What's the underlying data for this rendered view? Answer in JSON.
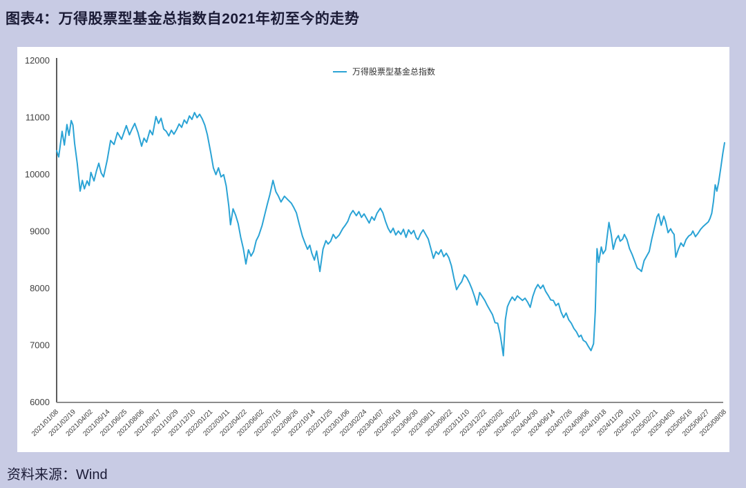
{
  "page": {
    "title": "图表4：万得股票型基金总指数自2021年初至今的走势",
    "source_label": "资料来源：Wind"
  },
  "colors": {
    "background": "#c8cbe4",
    "card": "#ffffff",
    "line": "#2aa3d5",
    "title_text": "#1b1b36",
    "y_axis": "#4a4a4a",
    "x_axis": "#8c8c8c",
    "tick_text": "#3c3c3c"
  },
  "chart_data": {
    "type": "line",
    "title": "",
    "legend_entries": [
      "万得股票型基金总指数"
    ],
    "legend_position": "top-center",
    "grid": false,
    "ylim": [
      6000,
      12000
    ],
    "yticks": [
      12000,
      11000,
      10000,
      9000,
      8000,
      7000,
      6000
    ],
    "x_unit": "tick_index",
    "x_tick_labels": [
      "2021/01/08",
      "2021/02/19",
      "2021/04/02",
      "2021/05/14",
      "2021/06/25",
      "2021/08/06",
      "2021/09/17",
      "2021/10/29",
      "2021/12/10",
      "2022/01/21",
      "2022/03/11",
      "2022/04/22",
      "2022/06/02",
      "2022/07/15",
      "2022/08/26",
      "2022/10/14",
      "2022/11/25",
      "2023/01/06",
      "2023/02/24",
      "2023/04/07",
      "2023/05/19",
      "2023/06/30",
      "2023/08/11",
      "2023/09/22",
      "2023/11/10",
      "2023/12/22",
      "2024/02/02",
      "2024/03/22",
      "2024/04/30",
      "2024/06/14",
      "2024/07/26",
      "2024/09/06",
      "2024/10/18",
      "2024/11/29",
      "2025/01/10",
      "2025/02/21",
      "2025/04/03",
      "2025/05/16",
      "2025/06/27",
      "2025/08/08"
    ],
    "series": [
      {
        "name": "万得股票型基金总指数",
        "color": "#2aa3d5",
        "points": [
          [
            0,
            10420
          ],
          [
            0.12,
            10310
          ],
          [
            0.32,
            10760
          ],
          [
            0.45,
            10520
          ],
          [
            0.6,
            10880
          ],
          [
            0.72,
            10690
          ],
          [
            0.85,
            10950
          ],
          [
            0.95,
            10870
          ],
          [
            1.05,
            10550
          ],
          [
            1.2,
            10200
          ],
          [
            1.37,
            9710
          ],
          [
            1.5,
            9900
          ],
          [
            1.62,
            9750
          ],
          [
            1.78,
            9890
          ],
          [
            1.9,
            9810
          ],
          [
            2,
            10040
          ],
          [
            2.18,
            9890
          ],
          [
            2.32,
            10060
          ],
          [
            2.46,
            10200
          ],
          [
            2.6,
            10030
          ],
          [
            2.74,
            9960
          ],
          [
            2.95,
            10250
          ],
          [
            3.15,
            10600
          ],
          [
            3.35,
            10530
          ],
          [
            3.55,
            10740
          ],
          [
            3.79,
            10620
          ],
          [
            4.07,
            10860
          ],
          [
            4.25,
            10700
          ],
          [
            4.4,
            10800
          ],
          [
            4.56,
            10900
          ],
          [
            4.75,
            10740
          ],
          [
            4.96,
            10500
          ],
          [
            5.1,
            10640
          ],
          [
            5.25,
            10570
          ],
          [
            5.45,
            10780
          ],
          [
            5.6,
            10700
          ],
          [
            5.8,
            11020
          ],
          [
            5.95,
            10900
          ],
          [
            6.1,
            10990
          ],
          [
            6.25,
            10800
          ],
          [
            6.4,
            10760
          ],
          [
            6.55,
            10680
          ],
          [
            6.7,
            10780
          ],
          [
            6.85,
            10710
          ],
          [
            7,
            10790
          ],
          [
            7.15,
            10890
          ],
          [
            7.3,
            10830
          ],
          [
            7.45,
            10960
          ],
          [
            7.6,
            10900
          ],
          [
            7.75,
            11030
          ],
          [
            7.9,
            10970
          ],
          [
            8.05,
            11090
          ],
          [
            8.2,
            11000
          ],
          [
            8.35,
            11060
          ],
          [
            8.5,
            10980
          ],
          [
            8.65,
            10870
          ],
          [
            8.8,
            10700
          ],
          [
            9,
            10380
          ],
          [
            9.15,
            10120
          ],
          [
            9.3,
            10000
          ],
          [
            9.45,
            10120
          ],
          [
            9.6,
            9960
          ],
          [
            9.75,
            10000
          ],
          [
            9.9,
            9800
          ],
          [
            10.05,
            9450
          ],
          [
            10.15,
            9120
          ],
          [
            10.3,
            9400
          ],
          [
            10.45,
            9290
          ],
          [
            10.6,
            9140
          ],
          [
            10.75,
            8900
          ],
          [
            10.9,
            8700
          ],
          [
            11.05,
            8430
          ],
          [
            11.2,
            8680
          ],
          [
            11.35,
            8570
          ],
          [
            11.5,
            8650
          ],
          [
            11.65,
            8840
          ],
          [
            11.8,
            8930
          ],
          [
            12,
            9110
          ],
          [
            12.15,
            9300
          ],
          [
            12.3,
            9480
          ],
          [
            12.45,
            9650
          ],
          [
            12.63,
            9900
          ],
          [
            12.8,
            9700
          ],
          [
            12.95,
            9620
          ],
          [
            13.1,
            9520
          ],
          [
            13.3,
            9620
          ],
          [
            13.5,
            9560
          ],
          [
            13.7,
            9500
          ],
          [
            13.85,
            9420
          ],
          [
            14,
            9330
          ],
          [
            14.15,
            9150
          ],
          [
            14.35,
            8920
          ],
          [
            14.5,
            8800
          ],
          [
            14.65,
            8690
          ],
          [
            14.78,
            8760
          ],
          [
            14.9,
            8620
          ],
          [
            15.05,
            8500
          ],
          [
            15.18,
            8660
          ],
          [
            15.37,
            8300
          ],
          [
            15.55,
            8690
          ],
          [
            15.72,
            8840
          ],
          [
            15.85,
            8780
          ],
          [
            16,
            8830
          ],
          [
            16.15,
            8950
          ],
          [
            16.3,
            8880
          ],
          [
            16.5,
            8940
          ],
          [
            16.7,
            9050
          ],
          [
            16.85,
            9110
          ],
          [
            17,
            9180
          ],
          [
            17.15,
            9300
          ],
          [
            17.3,
            9370
          ],
          [
            17.5,
            9280
          ],
          [
            17.65,
            9350
          ],
          [
            17.8,
            9250
          ],
          [
            17.95,
            9310
          ],
          [
            18.1,
            9230
          ],
          [
            18.25,
            9150
          ],
          [
            18.4,
            9260
          ],
          [
            18.55,
            9200
          ],
          [
            18.7,
            9320
          ],
          [
            18.9,
            9410
          ],
          [
            19.05,
            9330
          ],
          [
            19.2,
            9180
          ],
          [
            19.35,
            9060
          ],
          [
            19.5,
            8980
          ],
          [
            19.65,
            9060
          ],
          [
            19.8,
            8940
          ],
          [
            19.95,
            9010
          ],
          [
            20.1,
            8950
          ],
          [
            20.25,
            9040
          ],
          [
            20.4,
            8900
          ],
          [
            20.55,
            9030
          ],
          [
            20.7,
            8960
          ],
          [
            20.85,
            9020
          ],
          [
            21,
            8890
          ],
          [
            21.1,
            8860
          ],
          [
            21.25,
            8960
          ],
          [
            21.4,
            9030
          ],
          [
            21.55,
            8950
          ],
          [
            21.7,
            8870
          ],
          [
            21.85,
            8700
          ],
          [
            22,
            8530
          ],
          [
            22.15,
            8650
          ],
          [
            22.3,
            8600
          ],
          [
            22.45,
            8680
          ],
          [
            22.6,
            8560
          ],
          [
            22.75,
            8620
          ],
          [
            22.9,
            8540
          ],
          [
            23.05,
            8400
          ],
          [
            23.2,
            8180
          ],
          [
            23.35,
            7980
          ],
          [
            23.5,
            8060
          ],
          [
            23.65,
            8120
          ],
          [
            23.8,
            8240
          ],
          [
            23.95,
            8190
          ],
          [
            24.1,
            8100
          ],
          [
            24.25,
            7990
          ],
          [
            24.4,
            7860
          ],
          [
            24.55,
            7710
          ],
          [
            24.7,
            7930
          ],
          [
            24.85,
            7860
          ],
          [
            25,
            7790
          ],
          [
            25.15,
            7700
          ],
          [
            25.3,
            7620
          ],
          [
            25.45,
            7540
          ],
          [
            25.6,
            7400
          ],
          [
            25.75,
            7390
          ],
          [
            25.9,
            7190
          ],
          [
            26,
            6990
          ],
          [
            26.08,
            6820
          ],
          [
            26.2,
            7450
          ],
          [
            26.32,
            7680
          ],
          [
            26.45,
            7770
          ],
          [
            26.6,
            7850
          ],
          [
            26.75,
            7790
          ],
          [
            26.9,
            7870
          ],
          [
            27.05,
            7830
          ],
          [
            27.2,
            7790
          ],
          [
            27.35,
            7830
          ],
          [
            27.5,
            7760
          ],
          [
            27.65,
            7670
          ],
          [
            27.8,
            7860
          ],
          [
            27.95,
            7990
          ],
          [
            28.1,
            8070
          ],
          [
            28.25,
            8000
          ],
          [
            28.4,
            8060
          ],
          [
            28.55,
            7950
          ],
          [
            28.7,
            7880
          ],
          [
            28.85,
            7800
          ],
          [
            29,
            7790
          ],
          [
            29.15,
            7700
          ],
          [
            29.3,
            7740
          ],
          [
            29.45,
            7590
          ],
          [
            29.6,
            7490
          ],
          [
            29.75,
            7570
          ],
          [
            29.9,
            7450
          ],
          [
            30.05,
            7390
          ],
          [
            30.2,
            7300
          ],
          [
            30.35,
            7240
          ],
          [
            30.5,
            7150
          ],
          [
            30.62,
            7180
          ],
          [
            30.75,
            7090
          ],
          [
            30.9,
            7060
          ],
          [
            31.05,
            6980
          ],
          [
            31.2,
            6910
          ],
          [
            31.35,
            7030
          ],
          [
            31.45,
            7600
          ],
          [
            31.55,
            8700
          ],
          [
            31.65,
            8460
          ],
          [
            31.8,
            8730
          ],
          [
            31.9,
            8610
          ],
          [
            32.05,
            8680
          ],
          [
            32.15,
            8930
          ],
          [
            32.25,
            9160
          ],
          [
            32.38,
            8950
          ],
          [
            32.5,
            8690
          ],
          [
            32.65,
            8860
          ],
          [
            32.8,
            8930
          ],
          [
            32.9,
            8830
          ],
          [
            33.05,
            8870
          ],
          [
            33.15,
            8950
          ],
          [
            33.3,
            8860
          ],
          [
            33.45,
            8700
          ],
          [
            33.6,
            8600
          ],
          [
            33.75,
            8480
          ],
          [
            33.9,
            8360
          ],
          [
            34.05,
            8330
          ],
          [
            34.15,
            8300
          ],
          [
            34.3,
            8490
          ],
          [
            34.45,
            8570
          ],
          [
            34.6,
            8650
          ],
          [
            34.75,
            8870
          ],
          [
            34.9,
            9060
          ],
          [
            35.05,
            9260
          ],
          [
            35.15,
            9310
          ],
          [
            35.3,
            9110
          ],
          [
            35.45,
            9270
          ],
          [
            35.55,
            9180
          ],
          [
            35.7,
            8980
          ],
          [
            35.85,
            9050
          ],
          [
            35.95,
            8990
          ],
          [
            36.05,
            8950
          ],
          [
            36.15,
            8550
          ],
          [
            36.3,
            8690
          ],
          [
            36.45,
            8800
          ],
          [
            36.6,
            8740
          ],
          [
            36.75,
            8860
          ],
          [
            36.9,
            8920
          ],
          [
            37.05,
            8950
          ],
          [
            37.15,
            9010
          ],
          [
            37.3,
            8910
          ],
          [
            37.45,
            8970
          ],
          [
            37.6,
            9040
          ],
          [
            37.75,
            9090
          ],
          [
            37.9,
            9130
          ],
          [
            38.05,
            9170
          ],
          [
            38.15,
            9230
          ],
          [
            38.25,
            9320
          ],
          [
            38.35,
            9530
          ],
          [
            38.45,
            9820
          ],
          [
            38.55,
            9710
          ],
          [
            38.65,
            9860
          ],
          [
            38.78,
            10120
          ],
          [
            38.9,
            10380
          ],
          [
            39,
            10560
          ]
        ]
      }
    ]
  }
}
